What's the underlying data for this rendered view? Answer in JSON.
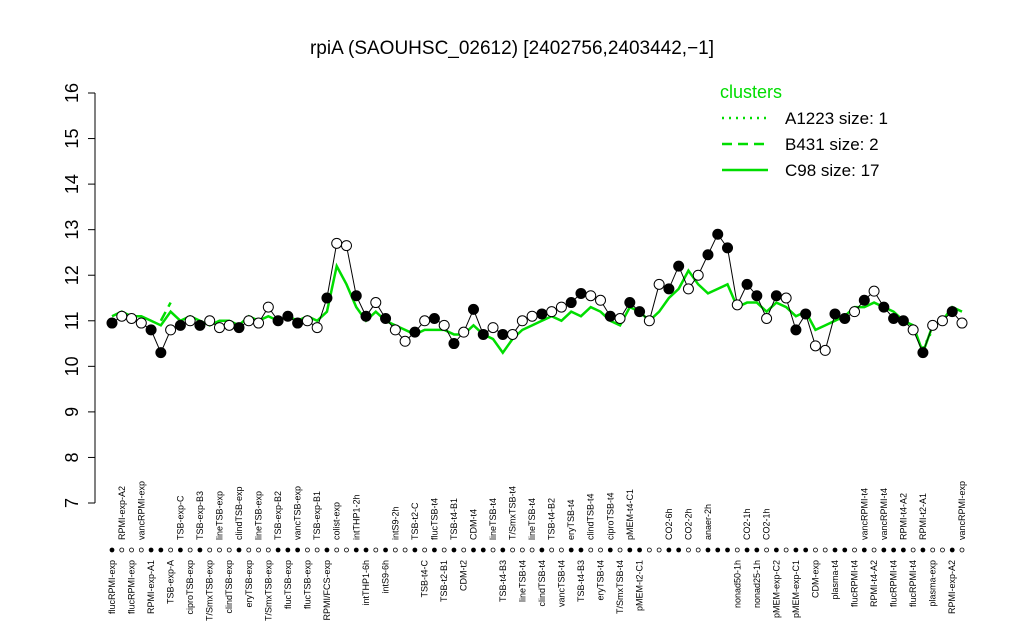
{
  "chart_data": {
    "type": "line",
    "title": "rpiA (SAOUHSC_02612) [2402756,2403442,−1]",
    "legend_title": "clusters",
    "legend_position": "top-right",
    "categories": [
      "flucRPMI-exp",
      "RPMI-exp-A2",
      "flucRPMI-exp",
      "vancRPMI-exp",
      "RPMI-exp-A1",
      null,
      "TSB-exp-A",
      "TSB-exp-C",
      "ciproTSB-exp",
      "TSB-exp-B3",
      "T/SmxTSB-exp",
      "lineTSB-exp",
      "clindTSB-exp",
      "clindTSB-exp",
      "eryTSB-exp",
      "lineTSB-exp",
      "T/SmxTSB-exp",
      "TSB-exp-B2",
      "flucTSB-exp",
      "vancTSB-exp",
      "flucTSB-exp",
      "TSB-exp-B1",
      "RPMI/FCS-exp",
      "colist-exp",
      null,
      "intTHP1-2h",
      "intTHP1-6h",
      null,
      "intS9-6h",
      "intS9-2h",
      null,
      "TSB-t2-C",
      "TSB-t4-C",
      "flucTSB-t4",
      "TSB-t2-B1",
      "TSB-t4-B1",
      "CDM-t2",
      "CDM-t4",
      null,
      "lineTSB-t4",
      "TSB-t4-B3",
      "T/SmxTSB-t4",
      "lineTSB-t4",
      "lineTSB-t4",
      "clindTSB-t4",
      "TSB-t4-B2",
      "vancTSB-t4",
      "eryTSB-t4",
      "TSB-t4-B3",
      "clindTSB-t4",
      "eryTSB-t4",
      "ciproTSB-t4",
      "T/SmxTSB-t4",
      "pMEM-t4-C1",
      "pMEM-t2-C1",
      null,
      null,
      "CO2-6h",
      null,
      "CO2-2h",
      null,
      "anaer-2h",
      null,
      null,
      "nonad50-1h",
      "CO2-1h",
      "nonad25-1h",
      "CO2-1h",
      "pMEM-exp-C2",
      null,
      "pMEM-exp-C1",
      null,
      "CDM-exp",
      null,
      "plasma-t4",
      null,
      "flucRPMI-t4",
      "vancRPMI-t4",
      "RPMI-t4-A2",
      "vancRPMI-t4",
      "flucRPMI-t4",
      "RPMI-t4-A2",
      "flucRPMI-t4",
      "RPMI-t2-A1",
      "plasma-exp",
      null,
      "RPMI-exp-A2",
      "vancRPMI-exp"
    ],
    "values": [
      10.95,
      11.1,
      11.05,
      10.95,
      10.8,
      10.3,
      10.8,
      10.9,
      11.0,
      10.9,
      11.0,
      10.85,
      10.9,
      10.85,
      11.0,
      10.95,
      11.3,
      11.0,
      11.1,
      10.95,
      11.0,
      10.85,
      11.5,
      12.7,
      12.65,
      11.55,
      11.1,
      11.4,
      11.05,
      10.8,
      10.55,
      10.75,
      11.0,
      11.05,
      10.9,
      10.5,
      10.75,
      11.25,
      10.7,
      10.85,
      10.7,
      10.7,
      11.0,
      11.1,
      11.15,
      11.2,
      11.3,
      11.4,
      11.6,
      11.55,
      11.45,
      11.1,
      11.05,
      11.4,
      11.2,
      11.0,
      11.8,
      11.7,
      12.2,
      11.7,
      12.0,
      12.45,
      12.9,
      12.6,
      11.35,
      11.8,
      11.55,
      11.05,
      11.55,
      11.5,
      10.8,
      11.15,
      10.45,
      10.35,
      11.15,
      11.05,
      11.2,
      11.45,
      11.65,
      11.3,
      11.05,
      11.0,
      10.8,
      10.3,
      10.9,
      11.0,
      11.2,
      10.95
    ],
    "filled": [
      true,
      false,
      false,
      false,
      true,
      true,
      false,
      true,
      false,
      true,
      false,
      false,
      false,
      true,
      false,
      false,
      false,
      true,
      true,
      true,
      false,
      false,
      true,
      false,
      false,
      true,
      true,
      false,
      true,
      false,
      false,
      true,
      false,
      true,
      false,
      true,
      false,
      true,
      true,
      false,
      true,
      false,
      false,
      false,
      true,
      false,
      false,
      true,
      true,
      false,
      false,
      true,
      false,
      true,
      true,
      false,
      false,
      true,
      true,
      false,
      false,
      true,
      true,
      true,
      false,
      true,
      true,
      false,
      true,
      false,
      true,
      true,
      false,
      false,
      true,
      true,
      false,
      true,
      false,
      true,
      true,
      true,
      false,
      true,
      false,
      false,
      true,
      false
    ],
    "color": "#000000",
    "series": [
      {
        "name": "A1223 size: 1",
        "color": "#00dd00",
        "style": "dotted",
        "values": [
          null,
          null,
          null,
          null,
          null,
          null,
          null,
          null,
          null,
          null,
          null,
          null,
          null,
          null,
          null,
          null,
          null,
          null,
          null,
          null,
          null,
          null,
          null,
          null,
          null,
          null,
          null,
          null,
          null,
          null,
          null,
          null,
          null,
          null,
          null,
          null,
          null,
          null,
          null,
          null,
          null,
          null,
          null,
          null,
          null,
          null,
          null,
          null,
          null,
          null,
          null,
          null,
          null,
          null,
          null,
          null,
          null,
          null,
          null,
          null,
          null,
          null,
          null,
          null,
          null,
          null,
          null,
          null,
          null,
          null,
          null,
          null,
          null,
          null,
          null,
          null,
          null,
          null,
          null,
          null,
          null,
          null,
          null,
          10.4,
          10.8,
          null,
          null,
          null
        ]
      },
      {
        "name": "B431 size: 2",
        "color": "#00dd00",
        "style": "dashed",
        "values": [
          null,
          null,
          null,
          null,
          null,
          11.0,
          11.4,
          null,
          null,
          null,
          null,
          null,
          null,
          null,
          null,
          null,
          null,
          null,
          null,
          null,
          null,
          null,
          null,
          null,
          null,
          null,
          null,
          null,
          null,
          null,
          null,
          null,
          null,
          null,
          null,
          null,
          null,
          null,
          null,
          null,
          null,
          null,
          null,
          null,
          null,
          null,
          null,
          null,
          null,
          null,
          null,
          null,
          null,
          null,
          null,
          null,
          null,
          null,
          null,
          null,
          null,
          null,
          null,
          null,
          null,
          null,
          null,
          null,
          null,
          null,
          null,
          null,
          null,
          null,
          null,
          null,
          null,
          null,
          null,
          null,
          null,
          null,
          null,
          null,
          null,
          null,
          null,
          null
        ]
      },
      {
        "name": "C98 size: 17",
        "color": "#00dd00",
        "style": "solid",
        "values": [
          11.1,
          11.2,
          11.1,
          11.1,
          11.0,
          10.9,
          11.2,
          11.0,
          11.1,
          11.0,
          10.9,
          11.0,
          11.0,
          10.9,
          11.1,
          11.0,
          11.1,
          11.0,
          11.1,
          11.0,
          11.1,
          11.0,
          11.2,
          12.2,
          11.8,
          11.3,
          11.0,
          11.2,
          11.0,
          10.9,
          10.8,
          10.7,
          10.8,
          10.8,
          10.8,
          10.7,
          10.7,
          10.9,
          10.7,
          10.6,
          10.3,
          10.6,
          10.8,
          10.9,
          11.0,
          11.1,
          11.0,
          11.2,
          11.1,
          11.3,
          11.2,
          11.0,
          10.9,
          11.3,
          11.2,
          11.0,
          11.2,
          11.5,
          11.7,
          12.1,
          11.8,
          11.6,
          11.7,
          11.8,
          11.3,
          11.4,
          11.4,
          11.2,
          11.4,
          11.3,
          11.1,
          11.2,
          10.8,
          10.9,
          11.0,
          11.1,
          11.3,
          11.3,
          11.4,
          11.3,
          11.2,
          11.0,
          10.9,
          10.3,
          10.9,
          11.0,
          11.3,
          11.2
        ]
      }
    ],
    "ylim": [
      7,
      16
    ],
    "yticks": [
      7,
      8,
      9,
      10,
      11,
      12,
      13,
      14,
      15,
      16
    ]
  }
}
